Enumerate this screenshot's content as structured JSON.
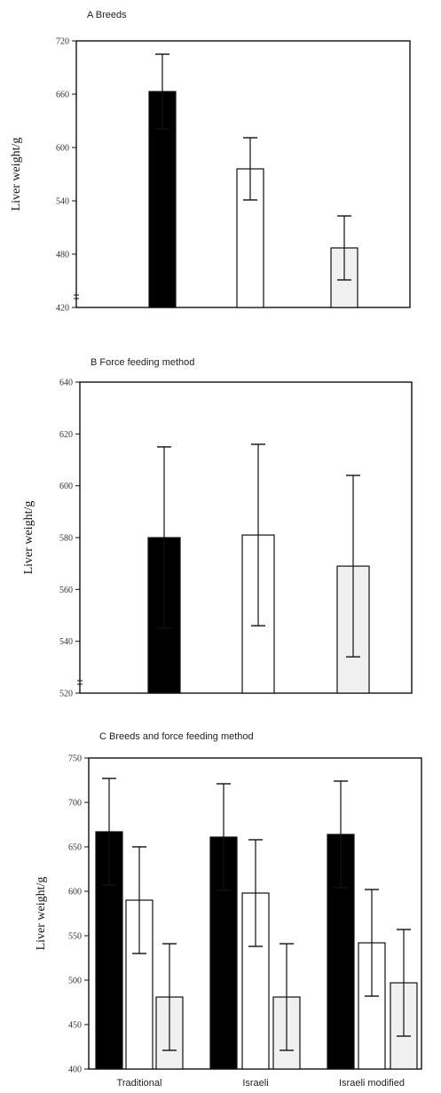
{
  "chart_data": [
    {
      "type": "bar",
      "title": "A   Breeds",
      "ylabel": "Liver weight/g",
      "xlabel": "",
      "ylim": [
        420,
        720
      ],
      "yticks": [
        420,
        480,
        540,
        600,
        660,
        720
      ],
      "axis_break": true,
      "grid": false,
      "legend": "none",
      "categories": [
        ""
      ],
      "series": [
        {
          "color": "#000000",
          "values": [
            663
          ],
          "error": [
            42
          ]
        },
        {
          "color": "#ffffff",
          "values": [
            576
          ],
          "error": [
            35
          ]
        },
        {
          "color": "#f0f0f0",
          "values": [
            487
          ],
          "error": [
            36
          ]
        }
      ]
    },
    {
      "type": "bar",
      "title": "B   Force feeding method",
      "ylabel": "Liver weight/g",
      "xlabel": "",
      "ylim": [
        520,
        640
      ],
      "yticks": [
        520,
        540,
        560,
        580,
        600,
        620,
        640
      ],
      "axis_break": true,
      "grid": false,
      "legend": "none",
      "categories": [
        ""
      ],
      "series": [
        {
          "color": "#000000",
          "values": [
            580
          ],
          "error": [
            35
          ]
        },
        {
          "color": "#ffffff",
          "values": [
            581
          ],
          "error": [
            35
          ]
        },
        {
          "color": "#f0f0f0",
          "values": [
            569
          ],
          "error": [
            35
          ]
        }
      ]
    },
    {
      "type": "bar",
      "title": "C   Breeds and force feeding method",
      "ylabel": "Liver weight/g",
      "xlabel": "",
      "ylim": [
        400,
        750
      ],
      "yticks": [
        400,
        450,
        500,
        550,
        600,
        650,
        700,
        750
      ],
      "axis_break": false,
      "grid": false,
      "legend": "none",
      "categories": [
        "Traditional",
        "Israeli",
        "Israeli modified"
      ],
      "series": [
        {
          "color": "#000000",
          "values": [
            667,
            661,
            664
          ],
          "error": [
            60,
            60,
            60
          ]
        },
        {
          "color": "#ffffff",
          "values": [
            590,
            598,
            542
          ],
          "error": [
            60,
            60,
            60
          ]
        },
        {
          "color": "#f0f0f0",
          "values": [
            481,
            481,
            497
          ],
          "error": [
            60,
            60,
            60
          ]
        }
      ]
    }
  ]
}
